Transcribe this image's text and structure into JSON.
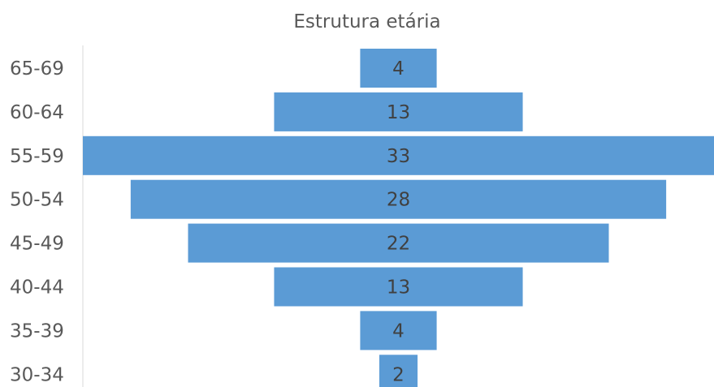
{
  "chart_data": {
    "type": "bar",
    "orientation": "horizontal",
    "layout": "centered",
    "title": "Estrutura etária",
    "xlabel": "",
    "ylabel": "",
    "categories": [
      "65-69",
      "60-64",
      "55-59",
      "50-54",
      "45-49",
      "40-44",
      "35-39",
      "30-34"
    ],
    "series": [
      {
        "values": [
          4,
          13,
          33,
          28,
          22,
          13,
          4,
          2
        ]
      }
    ],
    "data_labels": [
      "4",
      "13",
      "33",
      "28",
      "22",
      "13",
      "4",
      "2"
    ],
    "grid": false,
    "legend": "none",
    "colors": {
      "bar": "#5B9BD5",
      "text": "#595959",
      "label": "#404040",
      "axis": "#D9D9D9"
    }
  }
}
